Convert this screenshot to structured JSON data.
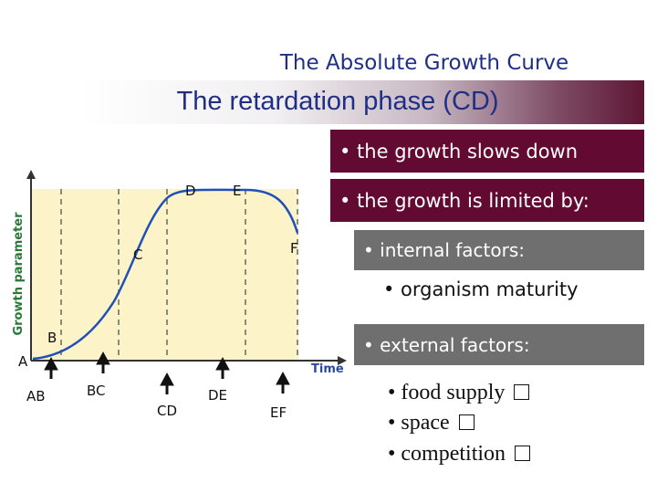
{
  "slide": {
    "title": "The Absolute Growth Curve",
    "subtitle": "The retardation phase (CD)"
  },
  "diagram": {
    "y_axis_label": "Growth parameter",
    "x_axis_label": "Time",
    "curve_points": [
      "A",
      "B",
      "C",
      "D",
      "E",
      "F"
    ],
    "phase_labels": [
      "AB",
      "BC",
      "CD",
      "DE",
      "EF"
    ]
  },
  "bullets": {
    "slows": "• the growth slows down",
    "limited": "• the growth is limited by:",
    "internal": "• internal factors:",
    "maturity": "• organism maturity",
    "external": "• external factors:",
    "food": "• food supply",
    "space": "• space",
    "competition": "• competition"
  },
  "colors": {
    "title": "#1f2f86",
    "dark_box": "#620a32",
    "gray_box": "#6f6f6f",
    "chart_fill": "#fcf4c8",
    "curve": "#1f50b8"
  }
}
